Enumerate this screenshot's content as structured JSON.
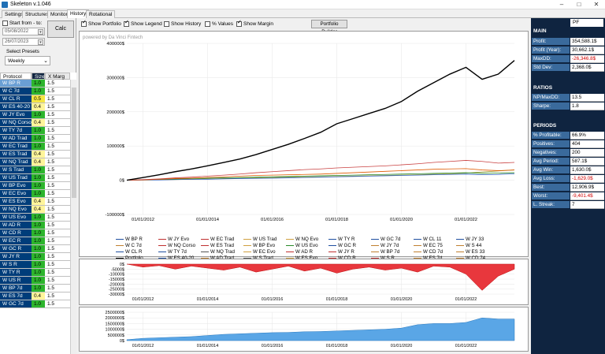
{
  "window": {
    "title": "Skeleton v.1.046"
  },
  "tabs": [
    {
      "label": "Settings"
    },
    {
      "label": "Structures"
    },
    {
      "label": "Monitor"
    },
    {
      "label": "History"
    },
    {
      "label": "Rotational"
    }
  ],
  "left": {
    "start_label": "Start from - to:",
    "date_from": "05/08/2022",
    "date_to": "26/07/2023",
    "calc_label": "Calc",
    "presets_label": "Select Presets",
    "presets_value": "Weekly",
    "columns": {
      "protocol": "Protocol",
      "size": "Size",
      "xmarg": "X Marg"
    },
    "rows": [
      {
        "protocol": "W BP R",
        "size": "1.0",
        "xmarg": "1.5",
        "color": "#2db52d"
      },
      {
        "protocol": "W C 7d",
        "size": "1.0",
        "xmarg": "1.5",
        "color": "#2db52d"
      },
      {
        "protocol": "W CL R",
        "size": "0.5",
        "xmarg": "1.5",
        "color": "#f5e642"
      },
      {
        "protocol": "W ES 40-20",
        "size": "0.4",
        "xmarg": "1.5",
        "color": "#fff59a"
      },
      {
        "protocol": "W JY Evo",
        "size": "1.0",
        "xmarg": "1.5",
        "color": "#2db52d"
      },
      {
        "protocol": "W NQ Corso",
        "size": "0.4",
        "xmarg": "1.5",
        "color": "#fff59a"
      },
      {
        "protocol": "W TY 7d",
        "size": "1.0",
        "xmarg": "1.5",
        "color": "#2db52d"
      },
      {
        "protocol": "W AD Trad",
        "size": "1.0",
        "xmarg": "1.5",
        "color": "#2db52d"
      },
      {
        "protocol": "W EC Trad",
        "size": "1.0",
        "xmarg": "1.5",
        "color": "#2db52d"
      },
      {
        "protocol": "W ES Trad",
        "size": "0.4",
        "xmarg": "1.5",
        "color": "#fff59a"
      },
      {
        "protocol": "W NQ Trad",
        "size": "0.4",
        "xmarg": "1.5",
        "color": "#fff59a"
      },
      {
        "protocol": "W S Trad",
        "size": "1.0",
        "xmarg": "1.5",
        "color": "#2db52d"
      },
      {
        "protocol": "W US Trad",
        "size": "1.0",
        "xmarg": "1.5",
        "color": "#2db52d"
      },
      {
        "protocol": "W BP Evo",
        "size": "1.0",
        "xmarg": "1.5",
        "color": "#2db52d"
      },
      {
        "protocol": "W EC Evo",
        "size": "1.0",
        "xmarg": "1.5",
        "color": "#2db52d"
      },
      {
        "protocol": "W ES Evo",
        "size": "0.4",
        "xmarg": "1.5",
        "color": "#fff59a"
      },
      {
        "protocol": "W NQ Evo",
        "size": "0.4",
        "xmarg": "1.5",
        "color": "#fff59a"
      },
      {
        "protocol": "W US Evo",
        "size": "1.0",
        "xmarg": "1.5",
        "color": "#2db52d"
      },
      {
        "protocol": "W AD R",
        "size": "1.0",
        "xmarg": "1.5",
        "color": "#2db52d"
      },
      {
        "protocol": "W CD R",
        "size": "1.0",
        "xmarg": "1.5",
        "color": "#2db52d"
      },
      {
        "protocol": "W EC R",
        "size": "1.0",
        "xmarg": "1.5",
        "color": "#2db52d"
      },
      {
        "protocol": "W GC R",
        "size": "1.0",
        "xmarg": "1.5",
        "color": "#2db52d"
      },
      {
        "protocol": "W JY R",
        "size": "1.0",
        "xmarg": "1.5",
        "color": "#2db52d"
      },
      {
        "protocol": "W S R",
        "size": "1.0",
        "xmarg": "1.5",
        "color": "#2db52d"
      },
      {
        "protocol": "W TY R",
        "size": "1.0",
        "xmarg": "1.5",
        "color": "#2db52d"
      },
      {
        "protocol": "W US R",
        "size": "1.0",
        "xmarg": "1.5",
        "color": "#2db52d"
      },
      {
        "protocol": "W BP 7d",
        "size": "1.0",
        "xmarg": "1.5",
        "color": "#2db52d"
      },
      {
        "protocol": "W ES 7d",
        "size": "0.4",
        "xmarg": "1.5",
        "color": "#fff59a"
      },
      {
        "protocol": "W GC 7d",
        "size": "1.0",
        "xmarg": "1.5",
        "color": "#2db52d"
      }
    ]
  },
  "toolbar": {
    "show_portfolio": "Show Portfolio",
    "show_legend": "Show Legend",
    "show_history": "Show History",
    "pct_values": "% Values",
    "show_margin": "Show Margin",
    "portfolio_builder": "Portfolio Builder"
  },
  "chart_credit": "powered by Da Vinci Fintech",
  "chart_data": [
    {
      "type": "line",
      "x": [
        "2011-07",
        "2012-01",
        "2012-07",
        "2013-01",
        "2013-07",
        "2014-01",
        "2014-07",
        "2015-01",
        "2015-07",
        "2016-01",
        "2016-07",
        "2017-01",
        "2017-07",
        "2018-01",
        "2018-07",
        "2019-01",
        "2019-07",
        "2020-01",
        "2020-07",
        "2021-01",
        "2021-07",
        "2022-01",
        "2022-07",
        "2023-01",
        "2023-07"
      ],
      "xticks": [
        "01/01/2012",
        "01/01/2014",
        "01/01/2016",
        "01/01/2018",
        "01/01/2020",
        "01/01/2022"
      ],
      "yticks": [
        "-100000$",
        "0$",
        "100000$",
        "200000$",
        "300000$",
        "400000$"
      ],
      "ylim": [
        -100000,
        400000
      ],
      "series": [
        {
          "name": "Portfolio",
          "color": "#000000",
          "values": [
            0,
            8000,
            16000,
            25000,
            33000,
            42000,
            52000,
            62000,
            75000,
            90000,
            105000,
            122000,
            140000,
            165000,
            180000,
            195000,
            210000,
            230000,
            260000,
            285000,
            310000,
            330000,
            295000,
            310000,
            350000
          ]
        },
        {
          "name": "W AD R",
          "color": "#c94040",
          "values": [
            0,
            2000,
            4000,
            7000,
            9000,
            12000,
            15000,
            18000,
            22000,
            25000,
            28000,
            31000,
            33000,
            36000,
            38000,
            40000,
            42000,
            45000,
            48000,
            52000,
            55000,
            58000,
            55000,
            50000,
            52000
          ]
        },
        {
          "name": "W US R",
          "color": "#e05a00",
          "values": [
            0,
            1000,
            3000,
            5000,
            6000,
            8000,
            10000,
            12000,
            14000,
            15000,
            16000,
            17000,
            18000,
            20000,
            22000,
            24000,
            26000,
            28000,
            30000,
            32000,
            33000,
            34000,
            30000,
            28000,
            30000
          ]
        },
        {
          "name": "W BP 7d",
          "color": "#2a8a2a",
          "values": [
            0,
            1500,
            2500,
            3500,
            5000,
            6000,
            7000,
            8000,
            9000,
            10000,
            11000,
            12000,
            13000,
            14000,
            15000,
            16000,
            17000,
            18000,
            19000,
            20000,
            21000,
            22000,
            20000,
            21000,
            22000
          ]
        },
        {
          "name": "W TY 7d",
          "color": "#3060c0",
          "values": [
            0,
            500,
            1000,
            2000,
            2500,
            3000,
            4000,
            5000,
            5500,
            6000,
            7000,
            8000,
            9000,
            10000,
            11000,
            12000,
            13000,
            14000,
            15000,
            16000,
            17000,
            18000,
            16000,
            17000,
            19000
          ]
        },
        {
          "name": "W GC 7d",
          "color": "#9a9a30",
          "values": [
            0,
            800,
            1500,
            2000,
            3000,
            4000,
            5000,
            6000,
            7000,
            8000,
            9000,
            9500,
            10000,
            11000,
            12000,
            13000,
            14000,
            15000,
            16000,
            17500,
            19000,
            21000,
            24000,
            27000,
            30000
          ]
        }
      ]
    },
    {
      "type": "area",
      "x": [
        "2011-07",
        "2012-01",
        "2012-07",
        "2013-01",
        "2013-07",
        "2014-01",
        "2014-07",
        "2015-01",
        "2015-07",
        "2016-01",
        "2016-07",
        "2017-01",
        "2017-07",
        "2018-01",
        "2018-07",
        "2019-01",
        "2019-07",
        "2020-01",
        "2020-07",
        "2021-01",
        "2021-07",
        "2022-01",
        "2022-07",
        "2023-01",
        "2023-07"
      ],
      "xticks": [
        "01/01/2012",
        "01/01/2014",
        "01/01/2016",
        "01/01/2018",
        "01/01/2020",
        "01/01/2022"
      ],
      "yticks": [
        "0$",
        "-5000$",
        "-10000$",
        "-15000$",
        "-20000$",
        "-25000$",
        "-30000$"
      ],
      "ylim": [
        -30000,
        0
      ],
      "values": [
        0,
        -3000,
        -1500,
        -5000,
        -2000,
        -4000,
        -6000,
        -3000,
        -8000,
        -5000,
        -2000,
        -7000,
        -4000,
        -9000,
        -5000,
        -3000,
        -6000,
        -4000,
        -8000,
        -2000,
        -3000,
        -10000,
        -26300,
        -12000,
        -5000
      ]
    },
    {
      "type": "area",
      "x": [
        "2011-07",
        "2012-01",
        "2012-07",
        "2013-01",
        "2013-07",
        "2014-01",
        "2014-07",
        "2015-01",
        "2015-07",
        "2016-01",
        "2016-07",
        "2017-01",
        "2017-07",
        "2018-01",
        "2018-07",
        "2019-01",
        "2019-07",
        "2020-01",
        "2020-07",
        "2021-01",
        "2021-07",
        "2022-01",
        "2022-07",
        "2023-01",
        "2023-07"
      ],
      "xticks": [
        "01/01/2012",
        "01/01/2014",
        "01/01/2016",
        "01/01/2018",
        "01/01/2020",
        "01/01/2022"
      ],
      "yticks": [
        "0$",
        "500000$",
        "1000000$",
        "1500000$",
        "2000000$",
        "2500000$"
      ],
      "ylim": [
        0,
        2500000
      ],
      "values": [
        80000,
        200000,
        250000,
        300000,
        350000,
        450000,
        550000,
        600000,
        650000,
        700000,
        720000,
        780000,
        800000,
        850000,
        900000,
        950000,
        1000000,
        1100000,
        1400000,
        1500000,
        1500000,
        1600000,
        2000000,
        1900000,
        1900000
      ]
    }
  ],
  "legend": [
    {
      "name": "W BP R",
      "color": "#1f4fa0"
    },
    {
      "name": "W JY Evo",
      "color": "#c03030"
    },
    {
      "name": "W EC Trad",
      "color": "#c03030"
    },
    {
      "name": "W US Trad",
      "color": "#d0a040"
    },
    {
      "name": "W NQ Evo",
      "color": "#d0a040"
    },
    {
      "name": "W TY R",
      "color": "#1f4fa0"
    },
    {
      "name": "W GC 7d",
      "color": "#1f4fa0"
    },
    {
      "name": "W CL 11",
      "color": "#1f4fa0"
    },
    {
      "name": "W JY 33",
      "color": "#1f4fa0"
    },
    {
      "name": "W C 7d",
      "color": "#c08030"
    },
    {
      "name": "W NQ Corso",
      "color": "#c03030"
    },
    {
      "name": "W ES Trad",
      "color": "#c03030"
    },
    {
      "name": "W BP Evo",
      "color": "#d0a040"
    },
    {
      "name": "W US Evo",
      "color": "#2a8a2a"
    },
    {
      "name": "W GC R",
      "color": "#1f4fa0"
    },
    {
      "name": "W JY 7d",
      "color": "#c08030"
    },
    {
      "name": "W EC 75",
      "color": "#c08030"
    },
    {
      "name": "W S 44",
      "color": "#c08030"
    },
    {
      "name": "W CL R",
      "color": "#1f4fa0"
    },
    {
      "name": "W TY 7d",
      "color": "#1f4fa0"
    },
    {
      "name": "W NQ Trad",
      "color": "#555555"
    },
    {
      "name": "W EC Evo",
      "color": "#d0a040"
    },
    {
      "name": "W AD R",
      "color": "#c03030"
    },
    {
      "name": "W JY R",
      "color": "#c03030"
    },
    {
      "name": "W BP 7d",
      "color": "#c08030"
    },
    {
      "name": "W CD 7d",
      "color": "#c08030"
    },
    {
      "name": "W ES 33",
      "color": "#c08030"
    },
    {
      "name": "Portfolio",
      "color": "#000000"
    },
    {
      "name": "W ES 40-20",
      "color": "#1f4fa0"
    },
    {
      "name": "W AD Trad",
      "color": "#c08030"
    },
    {
      "name": "W S Trad",
      "color": "#555555"
    },
    {
      "name": "W ES Evo",
      "color": "#d0a040"
    },
    {
      "name": "W CD R",
      "color": "#c03030"
    },
    {
      "name": "W S R",
      "color": "#c03030"
    },
    {
      "name": "W ES 7d",
      "color": "#c08030"
    },
    {
      "name": "W CD 74",
      "color": "#c08030"
    },
    {
      "name": "W ES 75",
      "color": "#c08030"
    }
  ],
  "right": {
    "pf": "PF",
    "main_title": "MAIN",
    "main": [
      {
        "label": "Profit:",
        "value": "354,588.1$",
        "neg": false
      },
      {
        "label": "Profit (Year):",
        "value": "30,662.1$",
        "neg": false
      },
      {
        "label": "MaxDD:",
        "value": "-26,346.8$",
        "neg": true
      },
      {
        "label": "Std Dev:",
        "value": "2,368.0$",
        "neg": false
      }
    ],
    "ratios_title": "RATIOS",
    "ratios": [
      {
        "label": "NP/MaxDD:",
        "value": "13.5",
        "neg": false
      },
      {
        "label": "Sharpe:",
        "value": "1.8",
        "neg": false
      }
    ],
    "periods_title": "PERIODS",
    "periods": [
      {
        "label": "% Profitable:",
        "value": "66.9%",
        "neg": false
      },
      {
        "label": "Positives:",
        "value": "404",
        "neg": false
      },
      {
        "label": "Negatives:",
        "value": "200",
        "neg": false
      },
      {
        "label": "Avg Period:",
        "value": "587.1$",
        "neg": false
      },
      {
        "label": "Avg Win:",
        "value": "1,630.0$",
        "neg": false
      },
      {
        "label": "Avg Loss:",
        "value": "-1,629.0$",
        "neg": true
      },
      {
        "label": "Best:",
        "value": "12,906.9$",
        "neg": false
      },
      {
        "label": "Worst:",
        "value": "-9,401.4$",
        "neg": true
      },
      {
        "label": "L. Streak:",
        "value": "7",
        "neg": false
      }
    ]
  }
}
